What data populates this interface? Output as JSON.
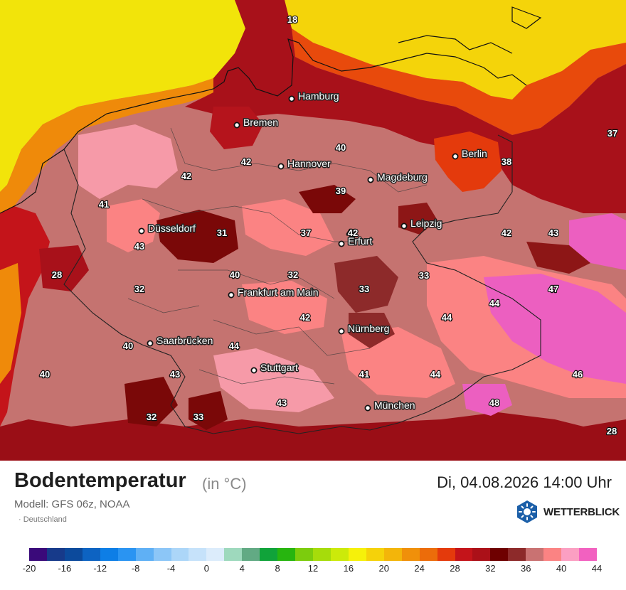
{
  "map": {
    "cities": [
      {
        "name": "Hamburg"
      },
      {
        "name": "Bremen"
      },
      {
        "name": "Hannover"
      },
      {
        "name": "Berlin"
      },
      {
        "name": "Magdeburg"
      },
      {
        "name": "Düsseldorf"
      },
      {
        "name": "Leipzig"
      },
      {
        "name": "Erfurt"
      },
      {
        "name": "Frankfurt am Main"
      },
      {
        "name": "Nürnberg"
      },
      {
        "name": "Saarbrücken"
      },
      {
        "name": "Stuttgart"
      },
      {
        "name": "München"
      }
    ],
    "values": [
      "18",
      "37",
      "40",
      "42",
      "42",
      "38",
      "41",
      "39",
      "42",
      "42",
      "43",
      "31",
      "37",
      "42",
      "43",
      "28",
      "40",
      "32",
      "33",
      "32",
      "33",
      "47",
      "44",
      "44",
      "40",
      "42",
      "44",
      "40",
      "43",
      "41",
      "44",
      "46",
      "32",
      "33",
      "43",
      "48",
      "28"
    ]
  },
  "header": {
    "title": "Bodentemperatur",
    "unit": "(in °C)",
    "datetime": "Di, 04.08.2026 14:00 Uhr",
    "model": "Modell: GFS 06z, NOAA",
    "region": "· Deutschland"
  },
  "brand": {
    "name": "WETTERBLICK",
    "color": "#1b5fa8"
  },
  "legend": {
    "colors": [
      "#3a0a7a",
      "#173a8a",
      "#0c4a9c",
      "#0d63c2",
      "#0d7ee6",
      "#2a94f2",
      "#5fb0f5",
      "#8cc6f7",
      "#acd6f8",
      "#c6e2fa",
      "#dcecfb",
      "#9ed9bd",
      "#62aa84",
      "#10a33a",
      "#27b50f",
      "#7ccc0d",
      "#a6dc0b",
      "#ccea0a",
      "#f6f10a",
      "#f5d20a",
      "#f3b50a",
      "#f0900a",
      "#ec6c0a",
      "#e43a0c",
      "#c4141a",
      "#ab1018",
      "#6e0000",
      "#8d2a2a",
      "#c97272",
      "#fb8383",
      "#fb9fc2",
      "#f261c0"
    ],
    "ticks": [
      "-20",
      "-16",
      "-12",
      "-8",
      "-4",
      "0",
      "4",
      "8",
      "12",
      "16",
      "20",
      "24",
      "28",
      "32",
      "36",
      "40",
      "44"
    ]
  }
}
